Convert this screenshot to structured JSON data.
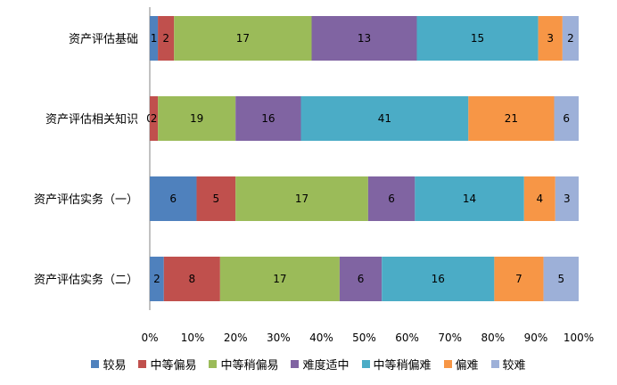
{
  "chart_data": {
    "type": "bar",
    "orientation": "horizontal",
    "stacked": "percent",
    "categories": [
      "资产评估基础",
      "资产评估相关知识",
      "资产评估实务（一）",
      "资产评估实务（二）"
    ],
    "series": [
      {
        "name": "较易",
        "color": "#4F81BD",
        "values": [
          1,
          0,
          6,
          2
        ]
      },
      {
        "name": "中等偏易",
        "color": "#C0504D",
        "values": [
          2,
          2,
          5,
          8
        ]
      },
      {
        "name": "中等稍偏易",
        "color": "#9BBB59",
        "values": [
          17,
          19,
          17,
          17
        ]
      },
      {
        "name": "难度适中",
        "color": "#8064A2",
        "values": [
          13,
          16,
          6,
          6
        ]
      },
      {
        "name": "中等稍偏难",
        "color": "#4BACC6",
        "values": [
          15,
          41,
          14,
          16
        ]
      },
      {
        "name": "偏难",
        "color": "#F79646",
        "values": [
          3,
          21,
          4,
          7
        ]
      },
      {
        "name": "较难",
        "color": "#9DB0D8",
        "values": [
          2,
          6,
          3,
          5
        ]
      }
    ],
    "xlim": [
      0,
      100
    ],
    "xticks": [
      "0%",
      "10%",
      "20%",
      "30%",
      "40%",
      "50%",
      "60%",
      "70%",
      "80%",
      "90%",
      "100%"
    ],
    "grid": false,
    "legend_position": "bottom"
  }
}
